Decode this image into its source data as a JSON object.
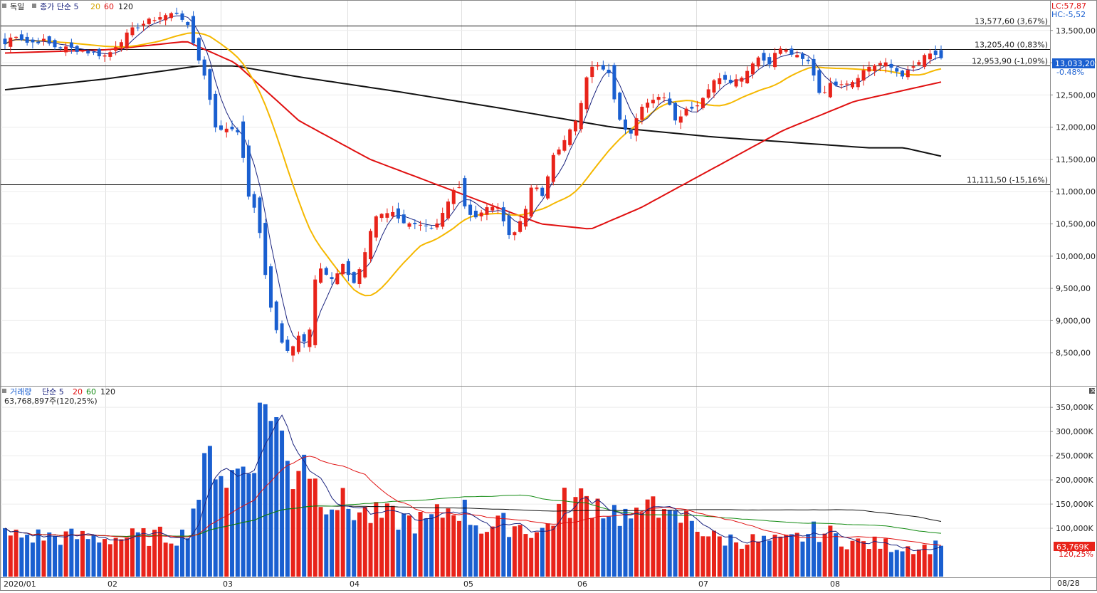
{
  "price_panel": {
    "legend": {
      "name": "독일",
      "series_label": "종가 단순 5",
      "ma20": "20",
      "ma60": "60",
      "ma120": "120"
    },
    "top_right": {
      "lc": "LC:57,87",
      "hc": "HC:-5,52"
    },
    "current": {
      "value": "13,033,20",
      "change": "-0.48%"
    },
    "hlines": [
      {
        "value": 13577.6,
        "label": "13,577,60 (3,67%)"
      },
      {
        "value": 13205.4,
        "label": "13,205,40 (0,83%)"
      },
      {
        "value": 12953.9,
        "label": "12,953,90 (-1,09%)"
      },
      {
        "value": 11111.5,
        "label": "11,111,50 (-15,16%)"
      }
    ],
    "y_ticks": [
      "13,500,00",
      "13,000,00",
      "12,500,00",
      "12,000,00",
      "11,500,00",
      "11,000,00",
      "10,500,00",
      "10,000,00",
      "9,500,00",
      "9,000,00",
      "8,500,00"
    ]
  },
  "volume_panel": {
    "legend": {
      "name": "거래량",
      "series_label": "단순 5",
      "ma20": "20",
      "ma60": "60",
      "ma120": "120",
      "value": "63,768,897주(120,25%)"
    },
    "y_ticks": [
      "350,000K",
      "300,000K",
      "250,000K",
      "200,000K",
      "150,000K",
      "100,000K"
    ],
    "current": {
      "value": "63,769K",
      "ratio": "120,25%"
    }
  },
  "x_axis": {
    "labels": [
      "2020/01",
      "02",
      "03",
      "04",
      "05",
      "06",
      "07",
      "08"
    ],
    "end_label": "08/28"
  },
  "colors": {
    "up": "#e8231a",
    "down": "#1a5fd0",
    "ma5": "#1a237e",
    "ma20": "#f5b800",
    "ma60": "#e01010",
    "ma120": "#111111",
    "vol_ma60": "#108a10"
  },
  "chart_data": {
    "type": "candlestick",
    "x": [
      "2020/01",
      "02",
      "03",
      "04",
      "05",
      "06",
      "07",
      "08"
    ],
    "ylim": [
      8000,
      13950
    ],
    "price_keypoints": [
      {
        "date": "2020/01",
        "close": 13200
      },
      {
        "date": "2020/02",
        "close": 13500
      },
      {
        "date": "2020/02 end",
        "close": 13790
      },
      {
        "date": "2020/03",
        "close": 12000
      },
      {
        "date": "2020/03 mid",
        "close": 8600
      },
      {
        "date": "2020/04",
        "close": 9600
      },
      {
        "date": "2020/05",
        "close": 10700
      },
      {
        "date": "2020/05 end",
        "close": 10500
      },
      {
        "date": "2020/06",
        "close": 12600
      },
      {
        "date": "2020/07",
        "close": 12650
      },
      {
        "date": "2020/07 end",
        "close": 13200
      },
      {
        "date": "2020/08",
        "close": 12800
      },
      {
        "date": "08/28",
        "close": 13033
      }
    ],
    "volume_ylim": [
      0,
      390000
    ],
    "volume_unit": "K"
  }
}
